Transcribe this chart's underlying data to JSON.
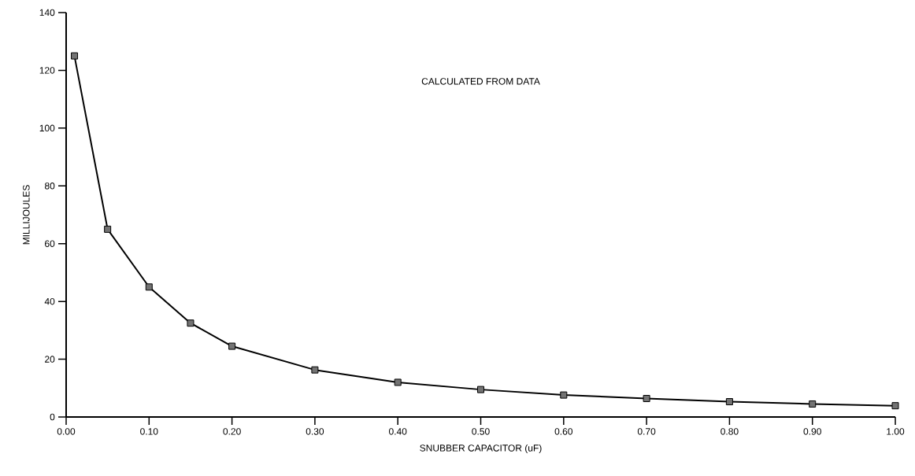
{
  "chart_data": {
    "type": "line",
    "xlabel": "SNUBBER CAPACITOR (uF)",
    "ylabel": "MILLIJOULES",
    "annotations": [
      "CALCULATED FROM DATA"
    ],
    "x": [
      0.01,
      0.05,
      0.1,
      0.15,
      0.2,
      0.3,
      0.4,
      0.5,
      0.6,
      0.7,
      0.8,
      0.9,
      1.0
    ],
    "series": [
      {
        "color": "#000000",
        "values": [
          125,
          65,
          45,
          32.5,
          24.5,
          16.3,
          12,
          9.5,
          7.6,
          6.4,
          5.3,
          4.5,
          3.9
        ]
      }
    ],
    "xlim": [
      0,
      1
    ],
    "ylim": [
      0,
      140
    ],
    "xticks": [
      {
        "value": 0,
        "label": "0.00"
      },
      {
        "value": 0.1,
        "label": "0.10"
      },
      {
        "value": 0.2,
        "label": "0.20"
      },
      {
        "value": 0.3,
        "label": "0.30"
      },
      {
        "value": 0.4,
        "label": "0.40"
      },
      {
        "value": 0.5,
        "label": "0.50"
      },
      {
        "value": 0.6,
        "label": "0.60"
      },
      {
        "value": 0.7,
        "label": "0.70"
      },
      {
        "value": 0.8,
        "label": "0.80"
      },
      {
        "value": 0.9,
        "label": "0.90"
      },
      {
        "value": 1,
        "label": "1.00"
      }
    ],
    "yticks": [
      0,
      20,
      40,
      60,
      80,
      100,
      120,
      140
    ],
    "grid": false,
    "marker": "square",
    "line_style": "solid"
  }
}
